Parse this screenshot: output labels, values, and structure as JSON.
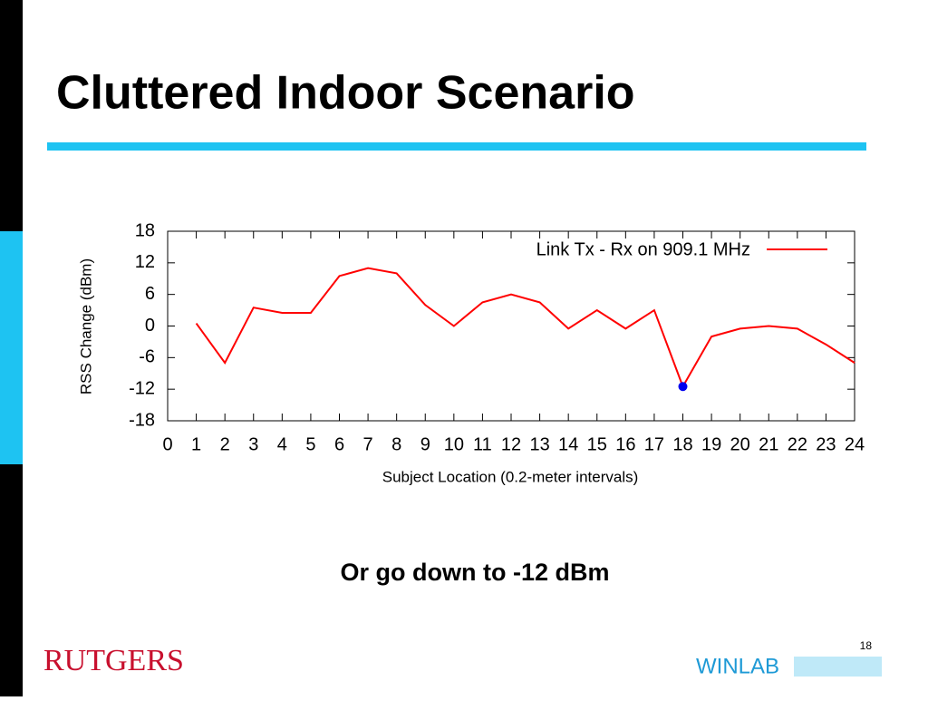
{
  "slide": {
    "title": "Cluttered Indoor Scenario",
    "caption": "Or go down to -12 dBm",
    "page_number": "18",
    "left_logo": "RUTGERS",
    "right_logo": "WINLAB"
  },
  "chart_data": {
    "type": "line",
    "x_label": "Subject Location (0.2-meter intervals)",
    "y_label": "RSS Change (dBm)",
    "x": [
      1,
      2,
      3,
      4,
      5,
      6,
      7,
      8,
      9,
      10,
      11,
      12,
      13,
      14,
      15,
      16,
      17,
      18,
      19,
      20,
      21,
      22,
      23,
      24
    ],
    "series": [
      {
        "name": "Link Tx - Rx on 909.1 MHz",
        "color": "#ff0000",
        "values": [
          0.5,
          -7,
          3.5,
          2.5,
          2.5,
          9.5,
          11,
          10,
          4,
          0,
          4.5,
          6,
          4.5,
          -0.5,
          3,
          -0.5,
          3,
          -11.5,
          -2,
          -0.5,
          0,
          -0.5,
          -3.5,
          -7
        ]
      }
    ],
    "highlight": {
      "x": 18,
      "y": -11.5,
      "color": "#0000ee"
    },
    "xlim": [
      0,
      24
    ],
    "xticks": [
      0,
      1,
      2,
      3,
      4,
      5,
      6,
      7,
      8,
      9,
      10,
      11,
      12,
      13,
      14,
      15,
      16,
      17,
      18,
      19,
      20,
      21,
      22,
      23,
      24
    ],
    "ylim": [
      -18,
      18
    ],
    "yticks": [
      -18,
      -12,
      -6,
      0,
      6,
      12,
      18
    ],
    "legend": "top-right"
  }
}
